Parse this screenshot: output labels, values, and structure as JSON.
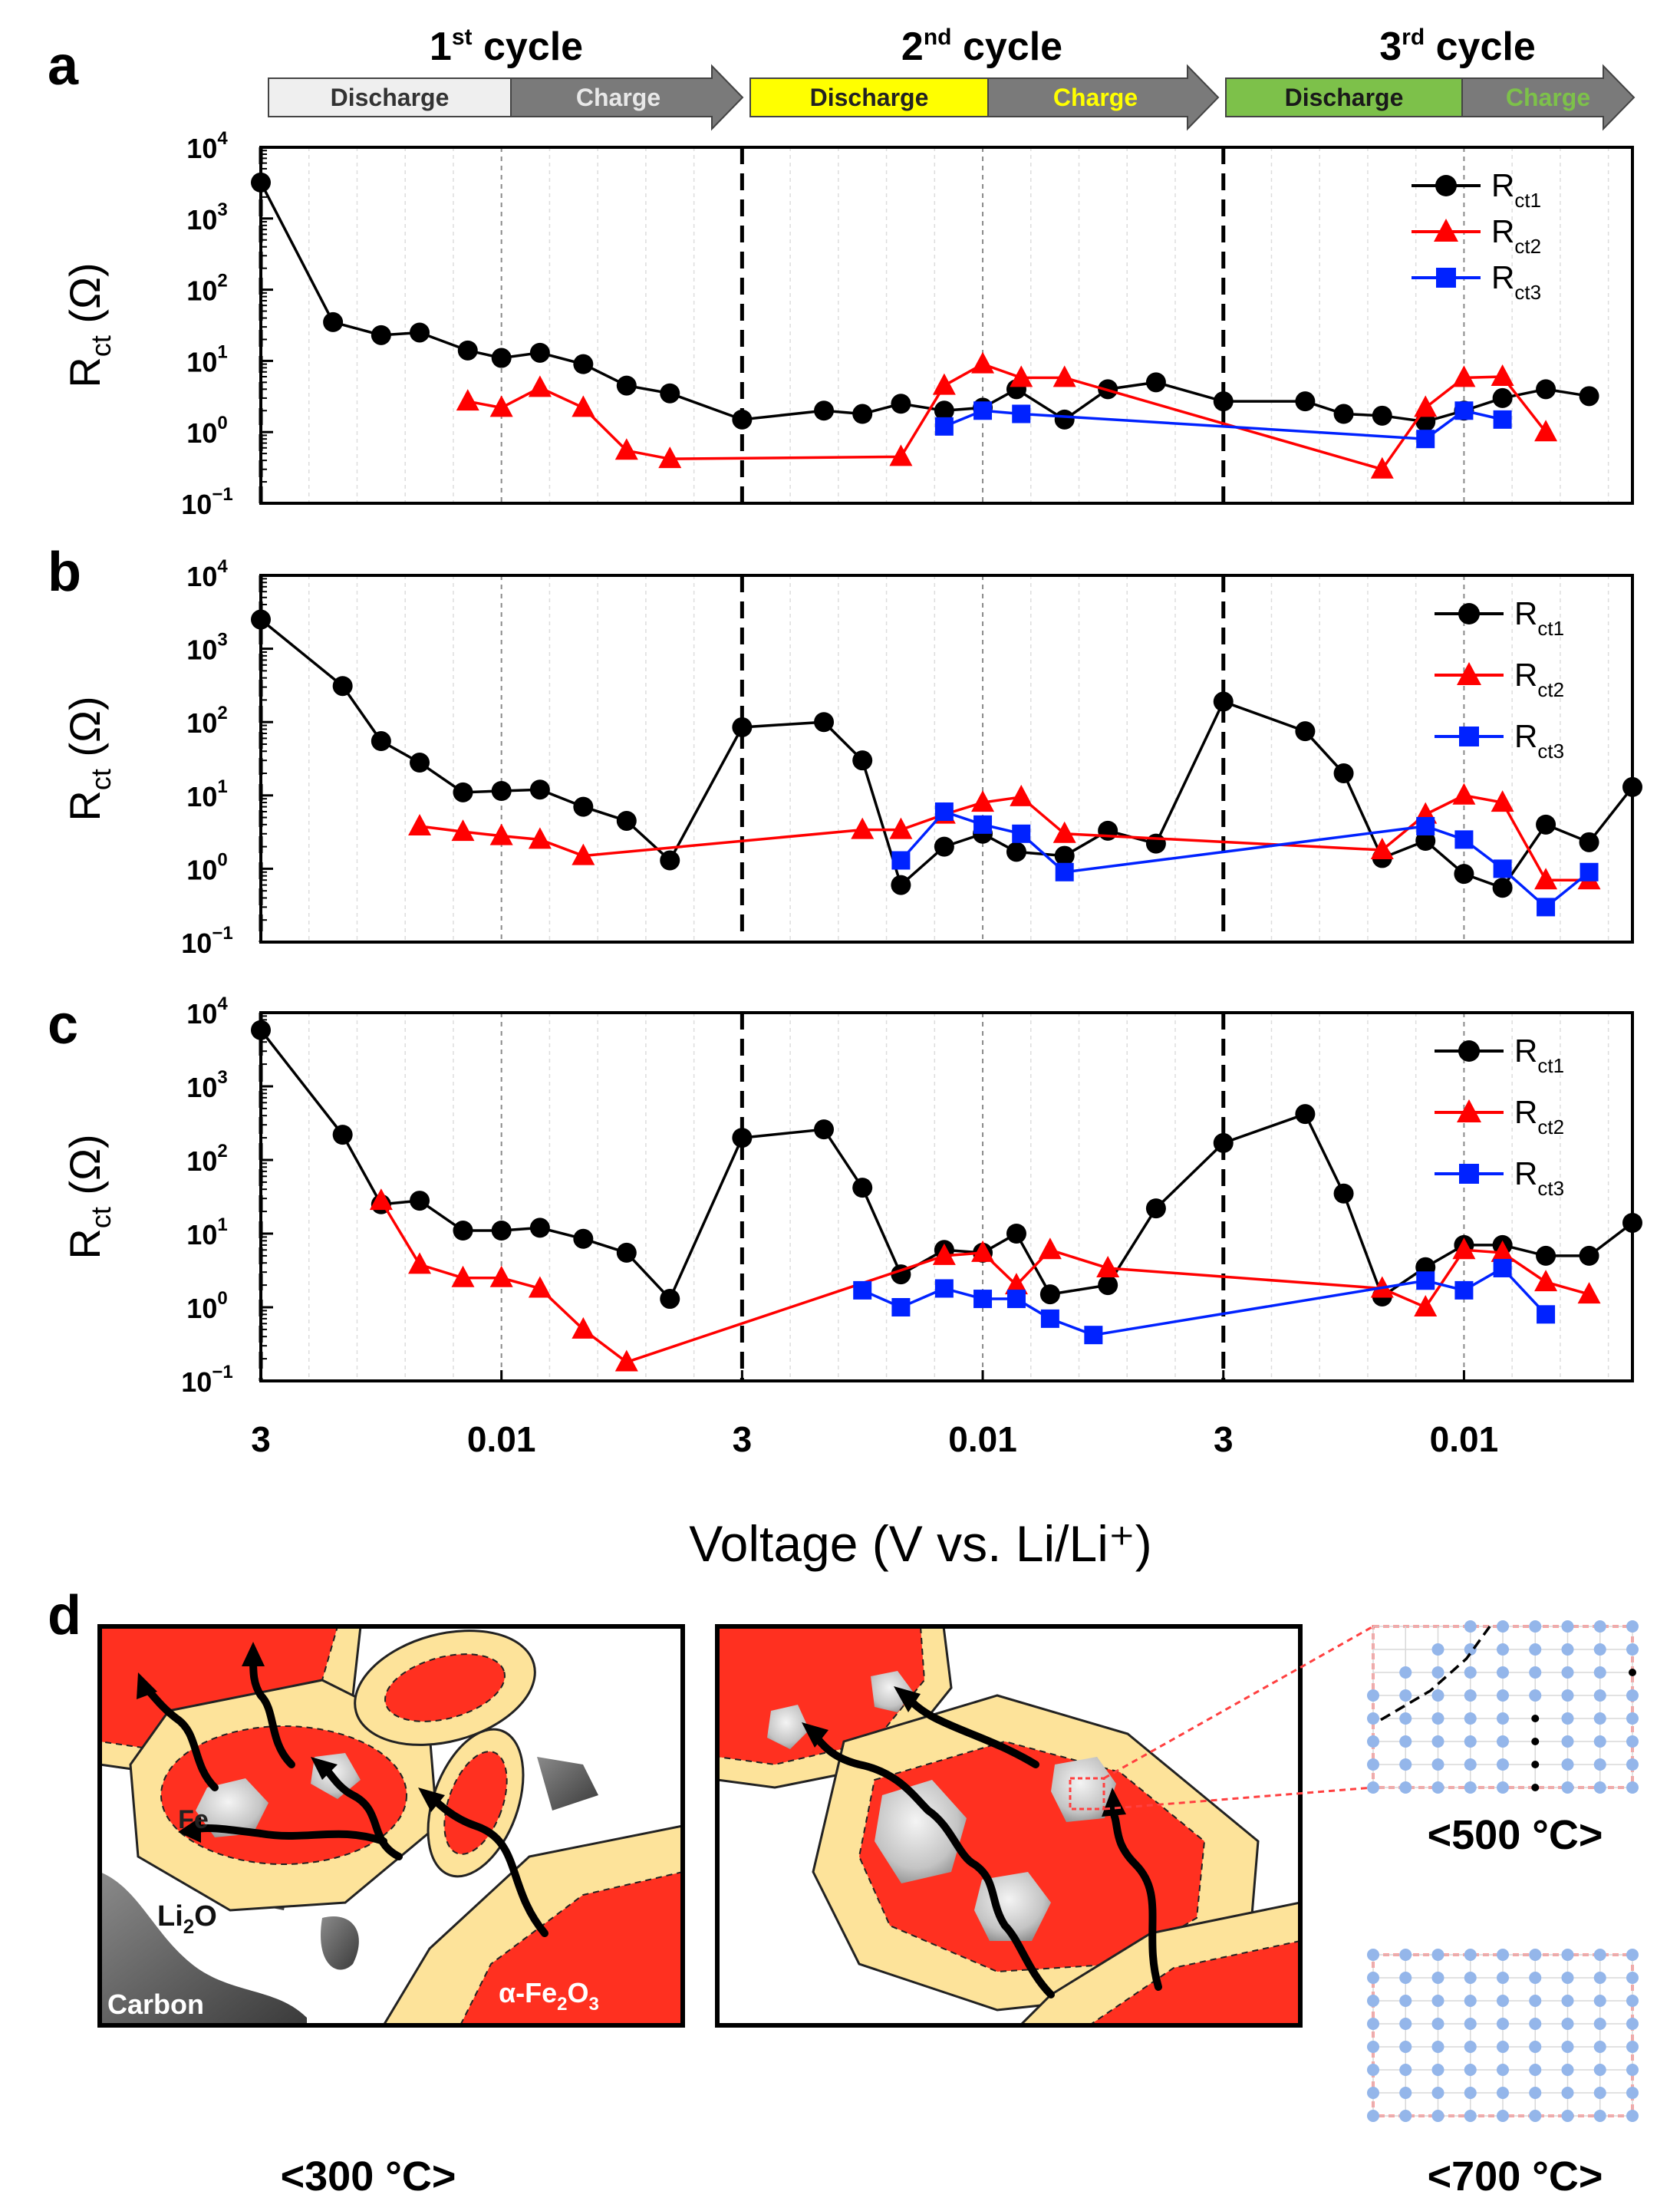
{
  "panel_letters": [
    "a",
    "b",
    "c",
    "d"
  ],
  "cycle_banner": {
    "cycles": [
      {
        "num": "1",
        "sup": "st",
        "word": "cycle",
        "discharge": "Discharge",
        "charge": "Charge",
        "colors": {
          "discharge_fill": "#efefef",
          "discharge_text": "#333333",
          "charge_fill": "#7a7a7a",
          "charge_text": "#e8e8e8"
        }
      },
      {
        "num": "2",
        "sup": "nd",
        "word": "cycle",
        "discharge": "Discharge",
        "charge": "Charge",
        "colors": {
          "discharge_fill": "#ffff00",
          "discharge_text": "#222222",
          "charge_fill": "#7a7a7a",
          "charge_text": "#ffff00"
        }
      },
      {
        "num": "3",
        "sup": "rd",
        "word": "cycle",
        "discharge": "Discharge",
        "charge": "Charge",
        "colors": {
          "discharge_fill": "#7dc14a",
          "discharge_text": "#1a1a1a",
          "charge_fill": "#7a7a7a",
          "charge_text": "#7dc14a"
        }
      }
    ]
  },
  "colors": {
    "rct1": "#000000",
    "rct2": "#ff0000",
    "rct3": "#0022ff",
    "axis": "#000000",
    "red_phase": "#ff3020",
    "shell": "#fde39a",
    "carbon": "#555555",
    "lattice_dot": "#94b6ea",
    "inset_border": "#ff4040"
  },
  "y_axis": {
    "label_main": "R",
    "label_sub": "ct",
    "label_unit": " (Ω)",
    "tick_labels": [
      {
        "base": "10",
        "exp": "4"
      },
      {
        "base": "10",
        "exp": "3"
      },
      {
        "base": "10",
        "exp": "2"
      },
      {
        "base": "10",
        "exp": "1"
      },
      {
        "base": "10",
        "exp": "0"
      },
      {
        "base": "10",
        "exp": "−1"
      }
    ]
  },
  "x_axis": {
    "tick_labels": [
      "3",
      "0.01",
      "3",
      "0.01",
      "3",
      "0.01"
    ],
    "title": "Voltage (V vs. Li/Li⁺)"
  },
  "legend": [
    {
      "main": "R",
      "sub": "ct1"
    },
    {
      "main": "R",
      "sub": "ct2"
    },
    {
      "main": "R",
      "sub": "ct3"
    }
  ],
  "chart_data": [
    {
      "panel": "a",
      "type": "line",
      "y_scale": "log",
      "ylim": [
        0.1,
        10000
      ],
      "xlabel": "Voltage (V vs. Li/Li⁺)",
      "ylabel": "Rct (Ω)",
      "x_note": "x = sequential measurement index; 3 cycles, 10 units each; x=0,10,20 at 3 V, x=5,15,25 at 0.01 V",
      "series": [
        {
          "name": "Rct1",
          "marker": "circle",
          "x": [
            0,
            1.5,
            2.5,
            3.3,
            4.3,
            5,
            5.8,
            6.7,
            7.6,
            8.5,
            10,
            11.7,
            12.5,
            13.3,
            14.2,
            15,
            15.7,
            16.7,
            17.6,
            18.6,
            20,
            21.7,
            22.5,
            23.3,
            24.2,
            25,
            25.8,
            26.7,
            27.6
          ],
          "y": [
            3200,
            35,
            23,
            25,
            14,
            11,
            13,
            9,
            4.5,
            3.5,
            1.5,
            2,
            1.8,
            2.5,
            2,
            2.2,
            4,
            1.5,
            4,
            5,
            2.7,
            2.7,
            1.8,
            1.7,
            1.4,
            2,
            3,
            4,
            3.2
          ]
        },
        {
          "name": "Rct2",
          "marker": "triangle",
          "x": [
            4.3,
            5,
            5.8,
            6.7,
            7.6,
            8.5,
            13.3,
            14.2,
            15,
            15.8,
            16.7,
            23.3,
            24.2,
            25,
            25.8,
            26.7
          ],
          "y": [
            2.7,
            2.2,
            4.2,
            2.2,
            0.55,
            0.42,
            0.45,
            4.5,
            9,
            5.8,
            5.8,
            0.3,
            2.2,
            5.8,
            6,
            1
          ]
        },
        {
          "name": "Rct3",
          "marker": "square",
          "x": [
            14.2,
            15,
            15.8,
            24.2,
            25,
            25.8
          ],
          "y": [
            1.2,
            2,
            1.8,
            0.8,
            2,
            1.5
          ]
        }
      ]
    },
    {
      "panel": "b",
      "type": "line",
      "y_scale": "log",
      "ylim": [
        0.1,
        10000
      ],
      "xlabel": "Voltage (V vs. Li/Li⁺)",
      "ylabel": "Rct (Ω)",
      "series": [
        {
          "name": "Rct1",
          "marker": "circle",
          "x": [
            0,
            1.7,
            2.5,
            3.3,
            4.2,
            5,
            5.8,
            6.7,
            7.6,
            8.5,
            10,
            11.7,
            12.5,
            13.3,
            14.2,
            15,
            15.7,
            16.7,
            17.6,
            18.6,
            20,
            21.7,
            22.5,
            23.3,
            24.2,
            25,
            25.8,
            26.7,
            27.6,
            28.5
          ],
          "y": [
            2500,
            310,
            55,
            28,
            11,
            11.5,
            12,
            7,
            4.5,
            1.3,
            85,
            100,
            30,
            0.6,
            2,
            3,
            1.7,
            1.5,
            3.3,
            2.2,
            190,
            75,
            20,
            1.4,
            2.4,
            0.85,
            0.55,
            4,
            2.3,
            13
          ]
        },
        {
          "name": "Rct2",
          "marker": "triangle",
          "x": [
            3.3,
            4.2,
            5,
            5.8,
            6.7,
            12.5,
            13.3,
            14.2,
            15,
            15.8,
            16.7,
            23.3,
            24.2,
            25,
            25.8,
            26.7,
            27.6
          ],
          "y": [
            3.8,
            3.2,
            2.8,
            2.5,
            1.5,
            3.4,
            3.4,
            5.5,
            8,
            9.5,
            3,
            1.8,
            5.5,
            10,
            8,
            0.7,
            0.7
          ]
        },
        {
          "name": "Rct3",
          "marker": "square",
          "x": [
            13.3,
            14.2,
            15,
            15.8,
            16.7,
            24.2,
            25,
            25.8,
            26.7,
            27.6
          ],
          "y": [
            1.3,
            6,
            4,
            3,
            0.9,
            3.8,
            2.5,
            1,
            0.3,
            0.9
          ]
        }
      ]
    },
    {
      "panel": "c",
      "type": "line",
      "y_scale": "log",
      "ylim": [
        0.1,
        10000
      ],
      "xlabel": "Voltage (V vs. Li/Li⁺)",
      "ylabel": "Rct (Ω)",
      "series": [
        {
          "name": "Rct1",
          "marker": "circle",
          "x": [
            0,
            1.7,
            2.5,
            3.3,
            4.2,
            5,
            5.8,
            6.7,
            7.6,
            8.5,
            10,
            11.7,
            12.5,
            13.3,
            14.2,
            15,
            15.7,
            16.4,
            17.6,
            18.6,
            20,
            21.7,
            22.5,
            23.3,
            24.2,
            25,
            25.8,
            26.7,
            27.6,
            28.5
          ],
          "y": [
            5800,
            220,
            25,
            28,
            11,
            11,
            12,
            8.5,
            5.5,
            1.3,
            200,
            260,
            42,
            2.8,
            6,
            5.5,
            10,
            1.5,
            2,
            22,
            170,
            420,
            35,
            1.4,
            3.5,
            7,
            7,
            5,
            5,
            14
          ]
        },
        {
          "name": "Rct2",
          "marker": "triangle",
          "x": [
            2.5,
            3.3,
            4.2,
            5,
            5.8,
            6.7,
            7.6,
            14.2,
            15,
            15.7,
            16.4,
            17.6,
            23.3,
            24.2,
            25,
            25.8,
            26.7,
            27.6
          ],
          "y": [
            28,
            3.8,
            2.5,
            2.5,
            1.8,
            0.5,
            0.18,
            5,
            5.5,
            2,
            6,
            3.4,
            1.8,
            1,
            6,
            5.5,
            2.2,
            1.5
          ]
        },
        {
          "name": "Rct3",
          "marker": "square",
          "x": [
            12.5,
            13.3,
            14.2,
            15,
            15.7,
            16.4,
            17.3,
            24.2,
            25,
            25.8,
            26.7
          ],
          "y": [
            1.7,
            1,
            1.8,
            1.3,
            1.3,
            0.7,
            0.42,
            2.3,
            1.7,
            3.4,
            0.8
          ]
        }
      ]
    }
  ],
  "schematic": {
    "labels": {
      "fe": "Fe",
      "li2o": "Li",
      "li2o_sub": "2",
      "li2o_tail": "O",
      "carbon": "Carbon",
      "fe2o3_prefix": "α-Fe",
      "fe2o3_sub1": "2",
      "fe2o3_mid": "O",
      "fe2o3_sub2": "3"
    },
    "temperature_labels": [
      "<300 °C>",
      "<500 °C>",
      "<700 °C>"
    ]
  }
}
